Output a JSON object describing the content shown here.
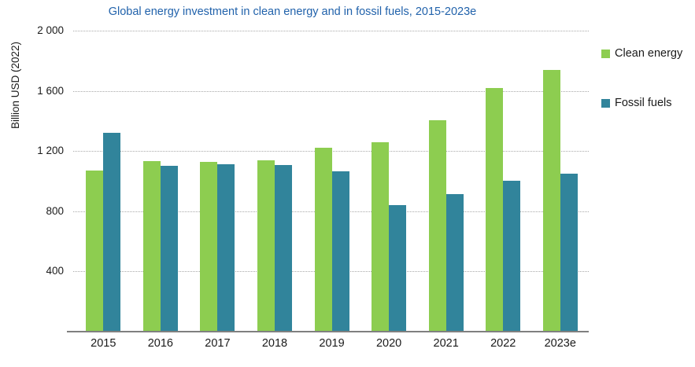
{
  "chart_data": {
    "type": "bar",
    "title": "Global energy investment in clean energy and in fossil fuels, 2015-2023e",
    "ylabel": "Billion USD (2022)",
    "xlabel": "",
    "categories": [
      "2015",
      "2016",
      "2017",
      "2018",
      "2019",
      "2020",
      "2021",
      "2022",
      "2023e"
    ],
    "series": [
      {
        "name": "Clean energy",
        "color": "#8dcd50",
        "values": [
          1073,
          1133,
          1128,
          1136,
          1224,
          1258,
          1405,
          1620,
          1740
        ]
      },
      {
        "name": "Fossil fuels",
        "color": "#31849b",
        "values": [
          1320,
          1104,
          1112,
          1107,
          1065,
          840,
          915,
          1002,
          1050
        ]
      }
    ],
    "ylim": [
      0,
      2000
    ],
    "yticks": [
      {
        "value": 2000,
        "label": "2 000"
      },
      {
        "value": 1600,
        "label": "1 600"
      },
      {
        "value": 1200,
        "label": "1 200"
      },
      {
        "value": 800,
        "label": "800"
      },
      {
        "value": 400,
        "label": "400"
      }
    ],
    "grid": "horizontal dotted",
    "legend_position": "right",
    "colors": {
      "title": "#2162ab",
      "axis_line": "#808080",
      "gridline": "#a9a9a9",
      "text": "#1a1a1a"
    }
  }
}
